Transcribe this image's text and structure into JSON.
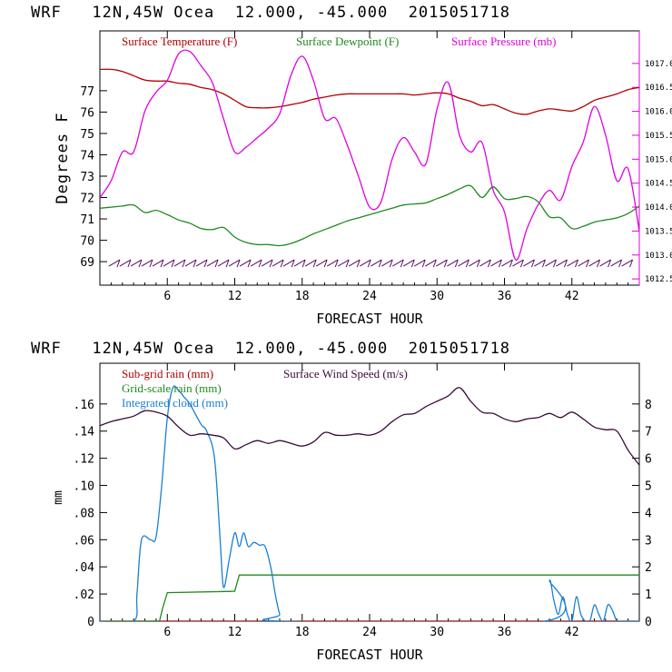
{
  "colors": {
    "temperature": "#b30000",
    "dewpoint": "#1f8a1f",
    "pressure": "#e000e0",
    "subgrid": "#b30000",
    "gridscale": "#1f8a1f",
    "cloud": "#1a7fd6",
    "wind": "#3a0a3a",
    "windbarb": "#5a0a5a",
    "axis": "#000000"
  },
  "panels": {
    "top": {
      "title": "WRF   12N,45W Ocea  12.000, -45.000  2015051718"
    },
    "bottom": {
      "title": "WRF   12N,45W Ocea  12.000, -45.000  2015051718"
    }
  },
  "chart_data": [
    {
      "type": "line",
      "xlabel": "FORECAST HOUR",
      "ylabel": "Degrees F",
      "xlim": [
        0,
        48
      ],
      "xticks": [
        6,
        12,
        18,
        24,
        30,
        36,
        42
      ],
      "ylim": [
        67.9,
        79.8
      ],
      "yticks": [
        69,
        70,
        71,
        72,
        73,
        74,
        75,
        76,
        77
      ],
      "y2lim": [
        1012.37,
        1017.68
      ],
      "y2ticks": [
        "1012.5",
        "1013.0",
        "1013.5",
        "1014.0",
        "1014.5",
        "1015.0",
        "1015.5",
        "1016.0",
        "1016.5",
        "1017.0"
      ],
      "legend": [
        "Surface Temperature (F)",
        "Surface Dewpoint (F)",
        "Surface Pressure (mb)"
      ],
      "series": [
        {
          "name": "Surface Temperature (F)",
          "axis": "left",
          "x": [
            0,
            1,
            2,
            3,
            4,
            5,
            6,
            7,
            8,
            9,
            10,
            11,
            12,
            13,
            14,
            15,
            16,
            17,
            18,
            19,
            20,
            21,
            22,
            23,
            24,
            25,
            26,
            27,
            28,
            29,
            30,
            31,
            32,
            33,
            34,
            35,
            36,
            37,
            38,
            39,
            40,
            41,
            42,
            43,
            44,
            45,
            46,
            47,
            48
          ],
          "values": [
            78.0,
            78.0,
            77.9,
            77.7,
            77.5,
            77.45,
            77.45,
            77.35,
            77.3,
            77.15,
            77.05,
            76.85,
            76.55,
            76.25,
            76.2,
            76.2,
            76.25,
            76.35,
            76.45,
            76.6,
            76.7,
            76.8,
            76.85,
            76.85,
            76.85,
            76.85,
            76.85,
            76.85,
            76.8,
            76.85,
            76.9,
            76.85,
            76.65,
            76.5,
            76.3,
            76.35,
            76.15,
            75.95,
            75.9,
            76.05,
            76.15,
            76.1,
            76.05,
            76.25,
            76.55,
            76.7,
            76.85,
            77.05,
            77.15
          ]
        },
        {
          "name": "Surface Dewpoint (F)",
          "axis": "left",
          "x": [
            0,
            1,
            2,
            3,
            4,
            5,
            6,
            7,
            8,
            9,
            10,
            11,
            12,
            13,
            14,
            15,
            16,
            17,
            18,
            19,
            20,
            21,
            22,
            23,
            24,
            25,
            26,
            27,
            28,
            29,
            30,
            31,
            32,
            33,
            34,
            35,
            36,
            37,
            38,
            39,
            40,
            41,
            42,
            43,
            44,
            45,
            46,
            47,
            48
          ],
          "values": [
            71.5,
            71.55,
            71.6,
            71.65,
            71.3,
            71.4,
            71.2,
            70.95,
            70.8,
            70.55,
            70.5,
            70.6,
            70.15,
            69.9,
            69.8,
            69.8,
            69.75,
            69.85,
            70.05,
            70.3,
            70.5,
            70.7,
            70.9,
            71.05,
            71.2,
            71.35,
            71.5,
            71.65,
            71.7,
            71.75,
            71.95,
            72.15,
            72.4,
            72.55,
            72.0,
            72.5,
            71.95,
            71.95,
            72.05,
            71.8,
            71.1,
            71.05,
            70.55,
            70.65,
            70.85,
            70.95,
            71.05,
            71.25,
            71.6
          ]
        },
        {
          "name": "Surface Pressure (mb)",
          "axis": "right",
          "x": [
            0,
            1,
            2,
            3,
            4,
            5,
            6,
            7,
            8,
            9,
            10,
            11,
            12,
            13,
            14,
            15,
            16,
            17,
            18,
            19,
            20,
            21,
            22,
            23,
            24,
            25,
            26,
            27,
            28,
            29,
            30,
            31,
            32,
            33,
            34,
            35,
            36,
            37,
            38,
            39,
            40,
            41,
            42,
            43,
            44,
            45,
            46,
            47,
            48
          ],
          "values": [
            1014.2,
            1014.55,
            1015.15,
            1015.15,
            1016.0,
            1016.4,
            1016.65,
            1017.2,
            1017.25,
            1016.95,
            1016.6,
            1015.85,
            1015.15,
            1015.25,
            1015.45,
            1015.65,
            1015.95,
            1016.75,
            1017.15,
            1016.65,
            1015.85,
            1015.85,
            1015.3,
            1014.65,
            1014.0,
            1014.1,
            1015.0,
            1015.45,
            1015.15,
            1014.9,
            1016.05,
            1016.6,
            1015.5,
            1015.15,
            1015.35,
            1014.35,
            1013.9,
            1012.9,
            1013.55,
            1014.05,
            1014.35,
            1014.15,
            1014.85,
            1015.35,
            1016.1,
            1015.5,
            1014.55,
            1014.8,
            1013.5
          ]
        }
      ],
      "wind_barbs": {
        "count": 48,
        "note": "near-surface wind barbs along 69 F line"
      }
    },
    {
      "type": "line",
      "xlabel": "FORECAST HOUR",
      "ylabel": "mm",
      "xlim": [
        0,
        48
      ],
      "xticks": [
        6,
        12,
        18,
        24,
        30,
        36,
        42
      ],
      "ylim": [
        0,
        0.19
      ],
      "yticks": [
        "0",
        ".02",
        ".04",
        ".06",
        ".08",
        ".10",
        ".12",
        ".14",
        ".16"
      ],
      "y2lim": [
        0,
        9.5
      ],
      "y2ticks": [
        "0",
        "1",
        "2",
        "3",
        "4",
        "5",
        "6",
        "7",
        "8"
      ],
      "legend": [
        "Sub-grid rain (mm)",
        "Surface Wind Speed (m/s)",
        "Grid-scale rain (mm)",
        "Integrated cloud (mm)"
      ],
      "series": [
        {
          "name": "Sub-grid rain (mm)",
          "axis": "left",
          "x": [
            0,
            48
          ],
          "values": [
            0,
            0
          ]
        },
        {
          "name": "Grid-scale rain (mm)",
          "axis": "left",
          "x": [
            0,
            5.3,
            5.6,
            6.0,
            12.0,
            12.4,
            48
          ],
          "values": [
            0,
            0,
            0.01,
            0.021,
            0.022,
            0.034,
            0.034
          ]
        },
        {
          "name": "Integrated cloud (mm)",
          "axis": "left",
          "x": [
            0,
            3.0,
            3.3,
            3.7,
            4.5,
            5.0,
            5.5,
            6.0,
            6.5,
            7.0,
            7.5,
            8.0,
            9.0,
            9.5,
            10.2,
            10.7,
            11.0,
            11.5,
            12.0,
            12.4,
            12.8,
            13.2,
            13.7,
            14.2,
            14.7,
            15.2,
            15.6,
            16.0,
            16.3,
            39.6,
            40.0,
            40.4,
            40.8,
            41.2,
            41.6,
            42.0,
            42.4,
            42.8,
            43.2,
            43.6,
            44.0,
            44.4,
            44.8,
            45.2,
            45.6,
            46.0,
            46.4,
            48
          ],
          "values": [
            0,
            0,
            0.02,
            0.06,
            0.06,
            0.062,
            0.1,
            0.15,
            0.172,
            0.17,
            0.165,
            0.16,
            0.145,
            0.14,
            0.12,
            0.06,
            0.025,
            0.045,
            0.065,
            0.055,
            0.065,
            0.055,
            0.058,
            0.056,
            0.055,
            0.04,
            0.02,
            0.005,
            0,
            0,
            0.03,
            0.015,
            0.005,
            0.018,
            0.005,
            0.0,
            0.018,
            0.005,
            0.0,
            0.0,
            0.012,
            0.005,
            0.0,
            0.012,
            0.008,
            0.0,
            0.0,
            0.0
          ]
        },
        {
          "name": "Surface Wind Speed (m/s)",
          "axis": "right",
          "x": [
            0,
            1,
            2,
            3,
            4,
            5,
            6,
            7,
            8,
            9,
            10,
            11,
            12,
            13,
            14,
            15,
            16,
            17,
            18,
            19,
            20,
            21,
            22,
            23,
            24,
            25,
            26,
            27,
            28,
            29,
            30,
            31,
            32,
            33,
            34,
            35,
            36,
            37,
            38,
            39,
            40,
            41,
            42,
            43,
            44,
            45,
            46,
            47,
            48
          ],
          "values": [
            7.2,
            7.35,
            7.45,
            7.55,
            7.75,
            7.7,
            7.55,
            7.15,
            6.85,
            6.9,
            6.85,
            6.75,
            6.35,
            6.5,
            6.65,
            6.55,
            6.65,
            6.55,
            6.45,
            6.6,
            6.95,
            6.85,
            6.85,
            6.9,
            6.85,
            7.0,
            7.35,
            7.6,
            7.65,
            7.9,
            8.1,
            8.3,
            8.6,
            8.1,
            7.7,
            7.65,
            7.45,
            7.35,
            7.45,
            7.5,
            7.65,
            7.5,
            7.7,
            7.45,
            7.15,
            7.05,
            7.0,
            6.3,
            5.75
          ]
        }
      ]
    }
  ]
}
